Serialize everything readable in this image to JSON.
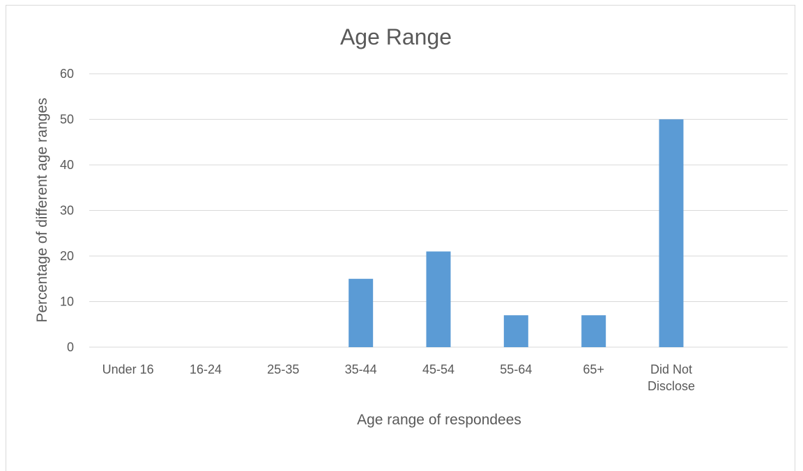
{
  "chart_data": {
    "type": "bar",
    "title": "Age Range",
    "xlabel": "Age range of respondees",
    "ylabel": "Percentage of different age ranges",
    "categories": [
      "Under 16",
      "16-24",
      "25-35",
      "35-44",
      "45-54",
      "55-64",
      "65+",
      "Did Not Disclose"
    ],
    "category_lines": [
      [
        "Under 16"
      ],
      [
        "16-24"
      ],
      [
        "25-35"
      ],
      [
        "35-44"
      ],
      [
        "45-54"
      ],
      [
        "55-64"
      ],
      [
        "65+"
      ],
      [
        "Did Not",
        "Disclose"
      ]
    ],
    "values": [
      0,
      0,
      0,
      15,
      21,
      7,
      7,
      50
    ],
    "ylim": [
      0,
      60
    ],
    "yticks": [
      0,
      10,
      20,
      30,
      40,
      50,
      60
    ],
    "grid": true,
    "legend": "none",
    "bar_color": "#5b9bd5",
    "grid_color": "#d9d9d9",
    "text_color": "#595959"
  }
}
